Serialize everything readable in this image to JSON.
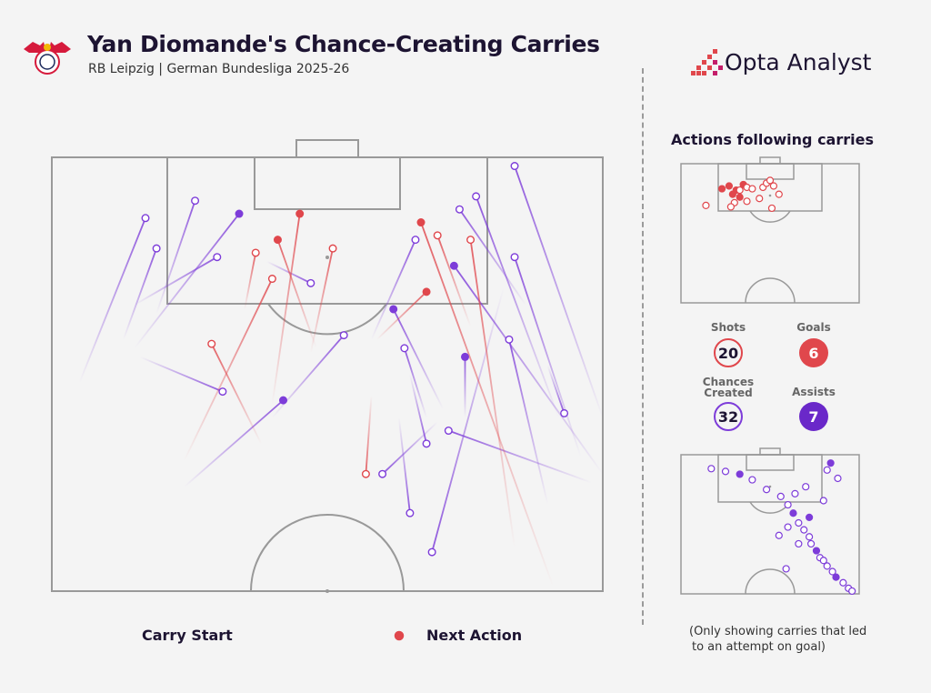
{
  "header": {
    "title": "Yan Diomande's Chance-Creating Carries",
    "subtitle": "RB Leipzig | German Bundesliga 2025-26"
  },
  "brand": {
    "name": "Opta Analyst"
  },
  "colors": {
    "shot": "#e0474c",
    "chance": "#7d3cd9",
    "background": "#f4f4f4",
    "pitch_line": "#999999"
  },
  "legend": {
    "start": "Carry Start",
    "end": "Next Action"
  },
  "side": {
    "title": "Actions following carries",
    "stats": {
      "shots_label": "Shots",
      "shots": "20",
      "goals_label": "Goals",
      "goals": "6",
      "chances_label_1": "Chances",
      "chances_label_2": "Created",
      "chances": "32",
      "assists_label": "Assists",
      "assists": "7"
    },
    "note_1": "(Only showing carries that led",
    "note_2": "to an attempt on goal)"
  },
  "chart_data": {
    "type": "scatter",
    "title": "Yan Diomande's Chance-Creating Carries",
    "units": "pitch coordinates, x 0-100 across (left to right), y 0-100 down the pitch from the attacking goal line to halfway",
    "carries": [
      {
        "kind": "chance",
        "outcome": false,
        "start": [
          5,
          52
        ],
        "end": [
          17,
          14
        ]
      },
      {
        "kind": "chance",
        "outcome": false,
        "start": [
          13,
          42
        ],
        "end": [
          19,
          21
        ]
      },
      {
        "kind": "chance",
        "outcome": false,
        "start": [
          19,
          36
        ],
        "end": [
          26,
          10
        ]
      },
      {
        "kind": "chance",
        "outcome": true,
        "start": [
          15,
          44
        ],
        "end": [
          34,
          13
        ]
      },
      {
        "kind": "chance",
        "outcome": false,
        "start": [
          15,
          34
        ],
        "end": [
          30,
          23
        ]
      },
      {
        "kind": "chance",
        "outcome": false,
        "start": [
          16,
          46
        ],
        "end": [
          31,
          54
        ]
      },
      {
        "kind": "chance",
        "outcome": false,
        "start": [
          39,
          24
        ],
        "end": [
          47,
          29
        ]
      },
      {
        "kind": "chance",
        "outcome": false,
        "start": [
          40,
          60
        ],
        "end": [
          53,
          41
        ]
      },
      {
        "kind": "chance",
        "outcome": true,
        "start": [
          24,
          76
        ],
        "end": [
          42,
          56
        ]
      },
      {
        "kind": "chance",
        "outcome": true,
        "start": [
          71,
          58
        ],
        "end": [
          62,
          35
        ]
      },
      {
        "kind": "chance",
        "outcome": false,
        "start": [
          58,
          42
        ],
        "end": [
          66,
          19
        ]
      },
      {
        "kind": "chance",
        "outcome": false,
        "start": [
          68,
          60
        ],
        "end": [
          64,
          44
        ]
      },
      {
        "kind": "chance",
        "outcome": false,
        "start": [
          65,
          50
        ],
        "end": [
          68,
          66
        ]
      },
      {
        "kind": "chance",
        "outcome": false,
        "start": [
          63,
          60
        ],
        "end": [
          65,
          82
        ]
      },
      {
        "kind": "chance",
        "outcome": true,
        "start": [
          75,
          60
        ],
        "end": [
          75,
          46
        ]
      },
      {
        "kind": "chance",
        "outcome": false,
        "start": [
          90,
          80
        ],
        "end": [
          83,
          42
        ]
      },
      {
        "kind": "chance",
        "outcome": false,
        "start": [
          96,
          69
        ],
        "end": [
          84,
          23
        ]
      },
      {
        "kind": "chance",
        "outcome": false,
        "start": [
          86,
          34
        ],
        "end": [
          74,
          12
        ]
      },
      {
        "kind": "chance",
        "outcome": false,
        "start": [
          92,
          60
        ],
        "end": [
          77,
          9
        ]
      },
      {
        "kind": "chance",
        "outcome": false,
        "start": [
          100,
          60
        ],
        "end": [
          84,
          2
        ]
      },
      {
        "kind": "chance",
        "outcome": false,
        "start": [
          98,
          75
        ],
        "end": [
          72,
          63
        ]
      },
      {
        "kind": "chance",
        "outcome": false,
        "start": [
          82,
          30
        ],
        "end": [
          69,
          91
        ]
      },
      {
        "kind": "chance",
        "outcome": true,
        "start": [
          100,
          73
        ],
        "end": [
          73,
          25
        ]
      },
      {
        "kind": "chance",
        "outcome": false,
        "start": [
          90,
          48
        ],
        "end": [
          93,
          59
        ]
      },
      {
        "kind": "chance",
        "outcome": false,
        "start": [
          70,
          61
        ],
        "end": [
          60,
          73
        ]
      },
      {
        "kind": "shot",
        "outcome": false,
        "start": [
          24,
          70
        ],
        "end": [
          40,
          28
        ]
      },
      {
        "kind": "shot",
        "outcome": true,
        "start": [
          40,
          57
        ],
        "end": [
          45,
          13
        ]
      },
      {
        "kind": "shot",
        "outcome": false,
        "start": [
          58,
          55
        ],
        "end": [
          57,
          73
        ]
      },
      {
        "kind": "shot",
        "outcome": false,
        "start": [
          38,
          66
        ],
        "end": [
          29,
          43
        ]
      },
      {
        "kind": "shot",
        "outcome": true,
        "start": [
          48,
          44
        ],
        "end": [
          41,
          19
        ]
      },
      {
        "kind": "shot",
        "outcome": false,
        "start": [
          47,
          45
        ],
        "end": [
          51,
          21
        ]
      },
      {
        "kind": "shot",
        "outcome": true,
        "start": [
          59,
          42
        ],
        "end": [
          68,
          31
        ]
      },
      {
        "kind": "shot",
        "outcome": true,
        "start": [
          91,
          99
        ],
        "end": [
          67,
          15
        ]
      },
      {
        "kind": "shot",
        "outcome": false,
        "start": [
          84,
          90
        ],
        "end": [
          76,
          19
        ]
      },
      {
        "kind": "shot",
        "outcome": false,
        "start": [
          76,
          39
        ],
        "end": [
          70,
          18
        ]
      },
      {
        "kind": "shot",
        "outcome": false,
        "start": [
          35,
          35
        ],
        "end": [
          37,
          22
        ]
      }
    ],
    "shot_outcomes": [
      [
        23,
        18
      ],
      [
        27,
        16
      ],
      [
        29,
        22
      ],
      [
        31,
        19
      ],
      [
        33,
        24
      ],
      [
        35,
        15
      ],
      [
        37,
        17
      ],
      [
        40,
        18
      ],
      [
        46,
        17
      ],
      [
        48,
        14
      ],
      [
        50,
        12
      ],
      [
        52,
        16
      ],
      [
        55,
        22
      ],
      [
        44,
        25
      ],
      [
        37,
        27
      ],
      [
        30,
        28
      ],
      [
        14,
        30
      ],
      [
        28,
        31
      ],
      [
        51,
        32
      ],
      [
        33,
        19
      ]
    ],
    "chance_outcomes": [
      [
        17,
        10
      ],
      [
        25,
        12
      ],
      [
        33,
        14
      ],
      [
        40,
        18
      ],
      [
        48,
        25
      ],
      [
        56,
        30
      ],
      [
        60,
        36
      ],
      [
        63,
        42
      ],
      [
        66,
        49
      ],
      [
        69,
        54
      ],
      [
        72,
        59
      ],
      [
        73,
        64
      ],
      [
        76,
        69
      ],
      [
        78,
        74
      ],
      [
        80,
        76
      ],
      [
        82,
        80
      ],
      [
        85,
        84
      ],
      [
        87,
        88
      ],
      [
        91,
        92
      ],
      [
        94,
        96
      ],
      [
        96,
        98
      ],
      [
        80,
        33
      ],
      [
        72,
        45
      ],
      [
        60,
        52
      ],
      [
        55,
        58
      ],
      [
        70,
        23
      ],
      [
        82,
        11
      ],
      [
        84,
        6
      ],
      [
        88,
        17
      ],
      [
        64,
        28
      ],
      [
        66,
        64
      ],
      [
        59,
        82
      ]
    ],
    "totals": {
      "shots": 20,
      "goals": 6,
      "chances_created": 32,
      "assists": 7
    }
  }
}
